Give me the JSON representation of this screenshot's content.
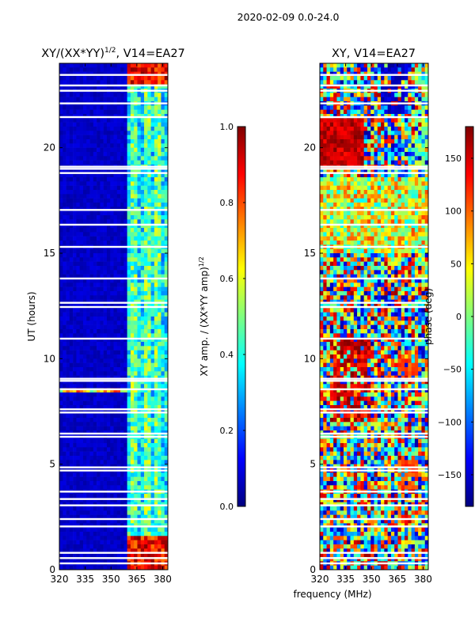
{
  "figure": {
    "suptitle": "2020-02-09 0.0-24.0"
  },
  "colors": {
    "jet": [
      "#00007f",
      "#0000ff",
      "#007fff",
      "#00ffff",
      "#7fff7f",
      "#ffff00",
      "#ff7f00",
      "#ff0000",
      "#7f0000"
    ],
    "gap": "#ffffff"
  },
  "chart_data": [
    {
      "type": "heatmap",
      "name": "amplitude-panel",
      "title_text": "XY/(XX*YY)",
      "title_sup": "1/2",
      "title_suffix": ", V14=EA27",
      "xlabel": "",
      "ylabel": "UT (hours)",
      "xlim": [
        320,
        383
      ],
      "ylim": [
        0,
        24
      ],
      "xticks": [
        320,
        335,
        350,
        365,
        380
      ],
      "yticks": [
        0,
        5,
        10,
        15,
        20
      ],
      "colorbar": {
        "label_text": "XY amp. / (XX*YY amp)",
        "label_sup": "1/2",
        "vmin": 0.0,
        "vmax": 1.0,
        "ticks": [
          "0.0",
          "0.2",
          "0.4",
          "0.6",
          "0.8",
          "1.0"
        ],
        "tick_values": [
          0.0,
          0.2,
          0.4,
          0.6,
          0.8,
          1.0
        ]
      },
      "description": "low normalized amplitude (~0.05) below ~360 MHz; elevated (~0.3-0.5) in 360-383 MHz band; near 1.0 at 360-380 MHz for UT<1.5 h and UT>23 h",
      "flagged_hours": [
        0.3,
        0.55,
        0.8,
        2.05,
        2.4,
        3.05,
        3.35,
        3.7,
        4.7,
        4.85,
        6.3,
        6.45,
        7.45,
        7.6,
        8.55,
        8.95,
        9.05,
        10.95,
        12.45,
        12.65,
        13.8,
        15.3,
        16.35,
        17.05,
        18.8,
        19.0,
        19.1,
        21.45,
        22.1,
        22.7,
        22.95,
        23.45
      ]
    },
    {
      "type": "heatmap",
      "name": "phase-panel",
      "title_text": "XY, V14=EA27",
      "xlabel": "frequency (MHz)",
      "ylabel": "",
      "xlim": [
        320,
        383
      ],
      "ylim": [
        0,
        24
      ],
      "xticks": [
        320,
        335,
        350,
        365,
        380
      ],
      "yticks": [
        0,
        5,
        10,
        15,
        20
      ],
      "colorbar": {
        "label_text": "phase (deg)",
        "vmin": -180,
        "vmax": 180,
        "ticks": [
          "−150",
          "−100",
          "−50",
          "0",
          "50",
          "100",
          "150"
        ],
        "tick_values": [
          -150,
          -100,
          -50,
          0,
          50,
          100,
          150
        ]
      },
      "description": "noisy phase; red (~150 deg) bands at UT 19-21 h and 7-11 h near 330-345 MHz; green/yellow (~0-50 deg) at 15-18.5 h; orange (~100 deg) near 370 MHz at 4-5 h and 9-10 h",
      "flagged_hours": [
        0.3,
        0.55,
        0.8,
        2.05,
        2.4,
        3.05,
        3.35,
        3.7,
        4.7,
        4.85,
        6.3,
        6.45,
        7.45,
        7.6,
        8.55,
        8.95,
        9.05,
        10.95,
        12.45,
        12.65,
        13.8,
        15.3,
        16.35,
        17.05,
        18.8,
        19.0,
        19.1,
        21.45,
        22.1,
        22.7,
        22.95,
        23.45
      ]
    }
  ]
}
